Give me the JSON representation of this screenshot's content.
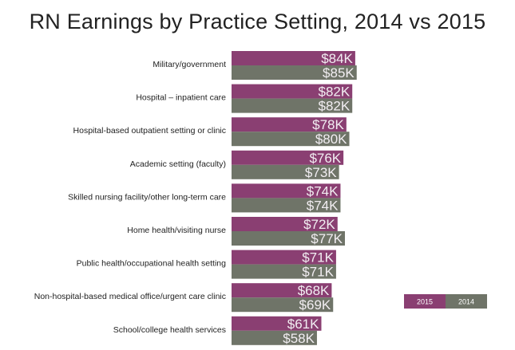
{
  "chart_data": {
    "type": "bar",
    "orientation": "horizontal",
    "title": "RN Earnings by Practice Setting, 2014 vs 2015",
    "categories": [
      "Military/government",
      "Hospital – inpatient care",
      "Hospital-based outpatient setting or clinic",
      "Academic setting (faculty)",
      "Skilled nursing facility/other long-term care",
      "Home health/visiting nurse",
      "Public health/occupational health setting",
      "Non-hospital-based medical office/urgent care clinic",
      "School/college health services"
    ],
    "series": [
      {
        "name": "2015",
        "color": "#8a3f72",
        "values": [
          84,
          82,
          78,
          76,
          74,
          72,
          71,
          68,
          61
        ],
        "labels": [
          "$84K",
          "$82K",
          "$78K",
          "$76K",
          "$74K",
          "$72K",
          "$71K",
          "$68K",
          "$61K"
        ]
      },
      {
        "name": "2014",
        "color": "#6f7468",
        "values": [
          85,
          82,
          80,
          73,
          74,
          77,
          71,
          69,
          58
        ],
        "labels": [
          "$85K",
          "$82K",
          "$80K",
          "$73K",
          "$74K",
          "$77K",
          "$71K",
          "$69K",
          "$58K"
        ]
      }
    ],
    "unit": "$K",
    "legend": {
      "position": "bottom-right",
      "entries": [
        "2015",
        "2014"
      ]
    },
    "grid": false
  }
}
